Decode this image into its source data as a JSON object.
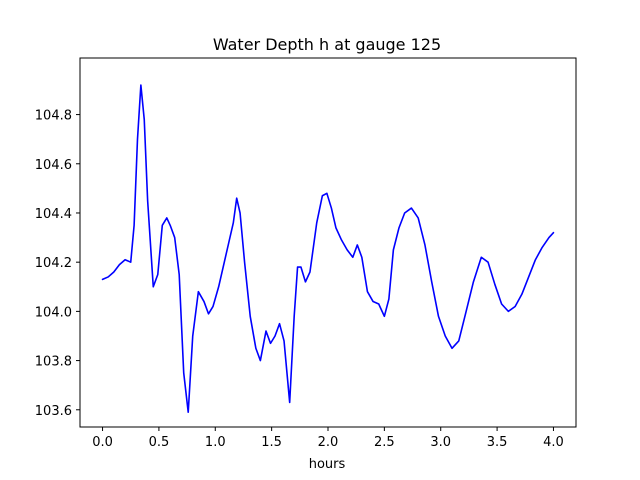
{
  "chart_data": {
    "type": "line",
    "title": "Water Depth h at gauge 125",
    "xlabel": "hours",
    "ylabel": "",
    "xlim": [
      -0.2,
      4.2
    ],
    "ylim": [
      103.53,
      105.03
    ],
    "xticks": [
      0.0,
      0.5,
      1.0,
      1.5,
      2.0,
      2.5,
      3.0,
      3.5,
      4.0
    ],
    "xtick_labels": [
      "0.0",
      "0.5",
      "1.0",
      "1.5",
      "2.0",
      "2.5",
      "3.0",
      "3.5",
      "4.0"
    ],
    "yticks": [
      103.6,
      103.8,
      104.0,
      104.2,
      104.4,
      104.6,
      104.8
    ],
    "ytick_labels": [
      "103.6",
      "103.8",
      "104.0",
      "104.2",
      "104.4",
      "104.6",
      "104.8"
    ],
    "grid": false,
    "series": [
      {
        "color": "#0000ff",
        "x": [
          0.0,
          0.05,
          0.1,
          0.15,
          0.2,
          0.25,
          0.28,
          0.31,
          0.34,
          0.37,
          0.4,
          0.45,
          0.49,
          0.53,
          0.57,
          0.6,
          0.64,
          0.68,
          0.72,
          0.76,
          0.8,
          0.85,
          0.9,
          0.94,
          0.98,
          1.03,
          1.08,
          1.12,
          1.16,
          1.19,
          1.22,
          1.26,
          1.31,
          1.36,
          1.4,
          1.45,
          1.49,
          1.53,
          1.57,
          1.61,
          1.66,
          1.7,
          1.73,
          1.76,
          1.8,
          1.84,
          1.9,
          1.95,
          1.99,
          2.03,
          2.07,
          2.12,
          2.17,
          2.22,
          2.26,
          2.3,
          2.35,
          2.4,
          2.45,
          2.5,
          2.54,
          2.58,
          2.63,
          2.68,
          2.74,
          2.8,
          2.86,
          2.92,
          2.98,
          3.04,
          3.1,
          3.16,
          3.22,
          3.29,
          3.36,
          3.42,
          3.48,
          3.54,
          3.6,
          3.66,
          3.72,
          3.78,
          3.84,
          3.9,
          3.96,
          4.0
        ],
        "y": [
          104.13,
          104.14,
          104.16,
          104.19,
          104.21,
          104.2,
          104.35,
          104.7,
          104.92,
          104.78,
          104.45,
          104.1,
          104.15,
          104.35,
          104.38,
          104.35,
          104.3,
          104.15,
          103.75,
          103.59,
          103.9,
          104.08,
          104.04,
          103.99,
          104.02,
          104.1,
          104.2,
          104.28,
          104.36,
          104.46,
          104.4,
          104.2,
          103.98,
          103.85,
          103.8,
          103.92,
          103.87,
          103.9,
          103.95,
          103.88,
          103.63,
          103.98,
          104.18,
          104.18,
          104.12,
          104.16,
          104.36,
          104.47,
          104.48,
          104.42,
          104.34,
          104.29,
          104.25,
          104.22,
          104.27,
          104.22,
          104.08,
          104.04,
          104.03,
          103.98,
          104.05,
          104.25,
          104.34,
          104.4,
          104.42,
          104.38,
          104.27,
          104.12,
          103.98,
          103.9,
          103.85,
          103.88,
          103.99,
          104.12,
          104.22,
          104.2,
          104.11,
          104.03,
          104.0,
          104.02,
          104.07,
          104.14,
          104.21,
          104.26,
          104.3,
          104.32
        ]
      }
    ]
  }
}
